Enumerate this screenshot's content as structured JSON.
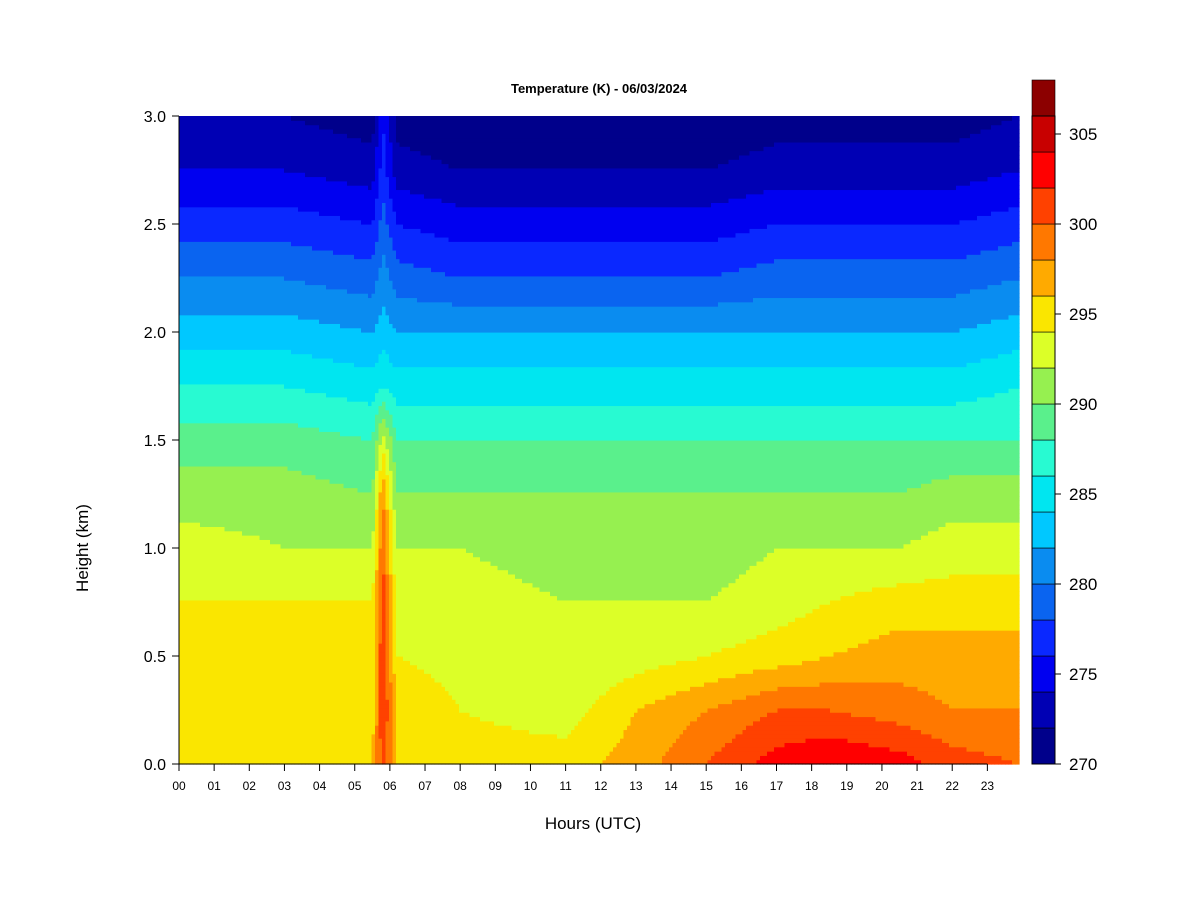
{
  "chart_data": {
    "type": "heatmap",
    "title": "Temperature (K) - 06/03/2024",
    "xlabel": "Hours (UTC)",
    "ylabel": "Height (km)",
    "x_ticks": [
      "00",
      "01",
      "02",
      "03",
      "04",
      "05",
      "06",
      "07",
      "08",
      "09",
      "10",
      "11",
      "12",
      "13",
      "14",
      "15",
      "16",
      "17",
      "18",
      "19",
      "20",
      "21",
      "22",
      "23"
    ],
    "xlim": [
      0,
      23.9
    ],
    "ylim": [
      0,
      3.0
    ],
    "y_ticks": [
      "0.0",
      "0.5",
      "1.0",
      "1.5",
      "2.0",
      "2.5",
      "3.0"
    ],
    "y_tick_values": [
      0,
      0.5,
      1.0,
      1.5,
      2.0,
      2.5,
      3.0
    ],
    "colorbar": {
      "min": 270,
      "max": 306,
      "step": 2,
      "labels": [
        "270",
        "275",
        "280",
        "285",
        "290",
        "295",
        "300",
        "305"
      ],
      "label_values": [
        270,
        275,
        280,
        285,
        290,
        295,
        300,
        305
      ],
      "colors": [
        "#00008B",
        "#0000B4",
        "#0000F0",
        "#0A28FF",
        "#0A64F0",
        "#0A8CF0",
        "#00C8FF",
        "#00E6F0",
        "#28FAD2",
        "#5AF08C",
        "#96F050",
        "#DCFF28",
        "#FAE600",
        "#FFAA00",
        "#FF7800",
        "#FF4100",
        "#FF0000",
        "#C80000",
        "#8C0000"
      ]
    },
    "temperature_profile": {
      "description_heights_km": [
        0.0,
        0.25,
        0.5,
        0.75,
        1.0,
        1.25,
        1.5,
        1.75,
        2.0,
        2.25,
        2.5,
        2.75,
        3.0
      ],
      "hours": [
        0,
        3,
        5.5,
        5.8,
        6.2,
        8,
        11,
        13,
        15,
        17,
        18.5,
        20.5,
        22,
        23.9
      ],
      "temperature_K": [
        [
          296,
          296,
          296,
          301,
          296,
          295,
          295,
          297,
          300,
          303,
          304,
          303,
          301,
          300
        ],
        [
          295,
          295,
          295,
          302,
          296,
          294,
          293,
          296,
          298,
          300,
          300,
          299,
          298,
          298
        ],
        [
          295,
          295,
          295,
          302,
          294,
          293,
          292,
          293,
          294,
          295,
          296,
          297,
          297,
          297
        ],
        [
          294,
          294,
          294,
          301,
          293,
          293,
          292,
          292,
          292,
          293,
          294,
          295,
          295,
          295
        ],
        [
          293,
          292,
          292,
          300,
          292,
          292,
          291,
          291,
          291,
          292,
          292,
          292,
          293,
          293
        ],
        [
          291,
          291,
          290,
          298,
          290,
          290,
          290,
          290,
          290,
          290,
          290,
          290,
          291,
          291
        ],
        [
          289,
          289,
          288,
          293,
          288,
          288,
          288,
          288,
          288,
          288,
          288,
          288,
          288,
          288
        ],
        [
          286,
          286,
          285,
          286,
          285,
          285,
          285,
          285,
          285,
          285,
          285,
          285,
          285,
          286
        ],
        [
          283,
          283,
          282,
          283,
          282,
          282,
          282,
          282,
          282,
          282,
          282,
          282,
          282,
          283
        ],
        [
          280,
          280,
          279,
          281,
          279,
          278,
          278,
          278,
          278,
          279,
          279,
          279,
          279,
          280
        ],
        [
          277,
          277,
          276,
          279,
          276,
          275,
          275,
          275,
          275,
          276,
          276,
          276,
          276,
          277
        ],
        [
          274,
          274,
          273,
          277,
          273,
          272,
          272,
          272,
          272,
          273,
          273,
          273,
          273,
          274
        ],
        [
          272,
          272,
          271,
          276,
          271,
          270,
          270,
          270,
          270,
          271,
          271,
          271,
          271,
          272
        ]
      ]
    }
  }
}
